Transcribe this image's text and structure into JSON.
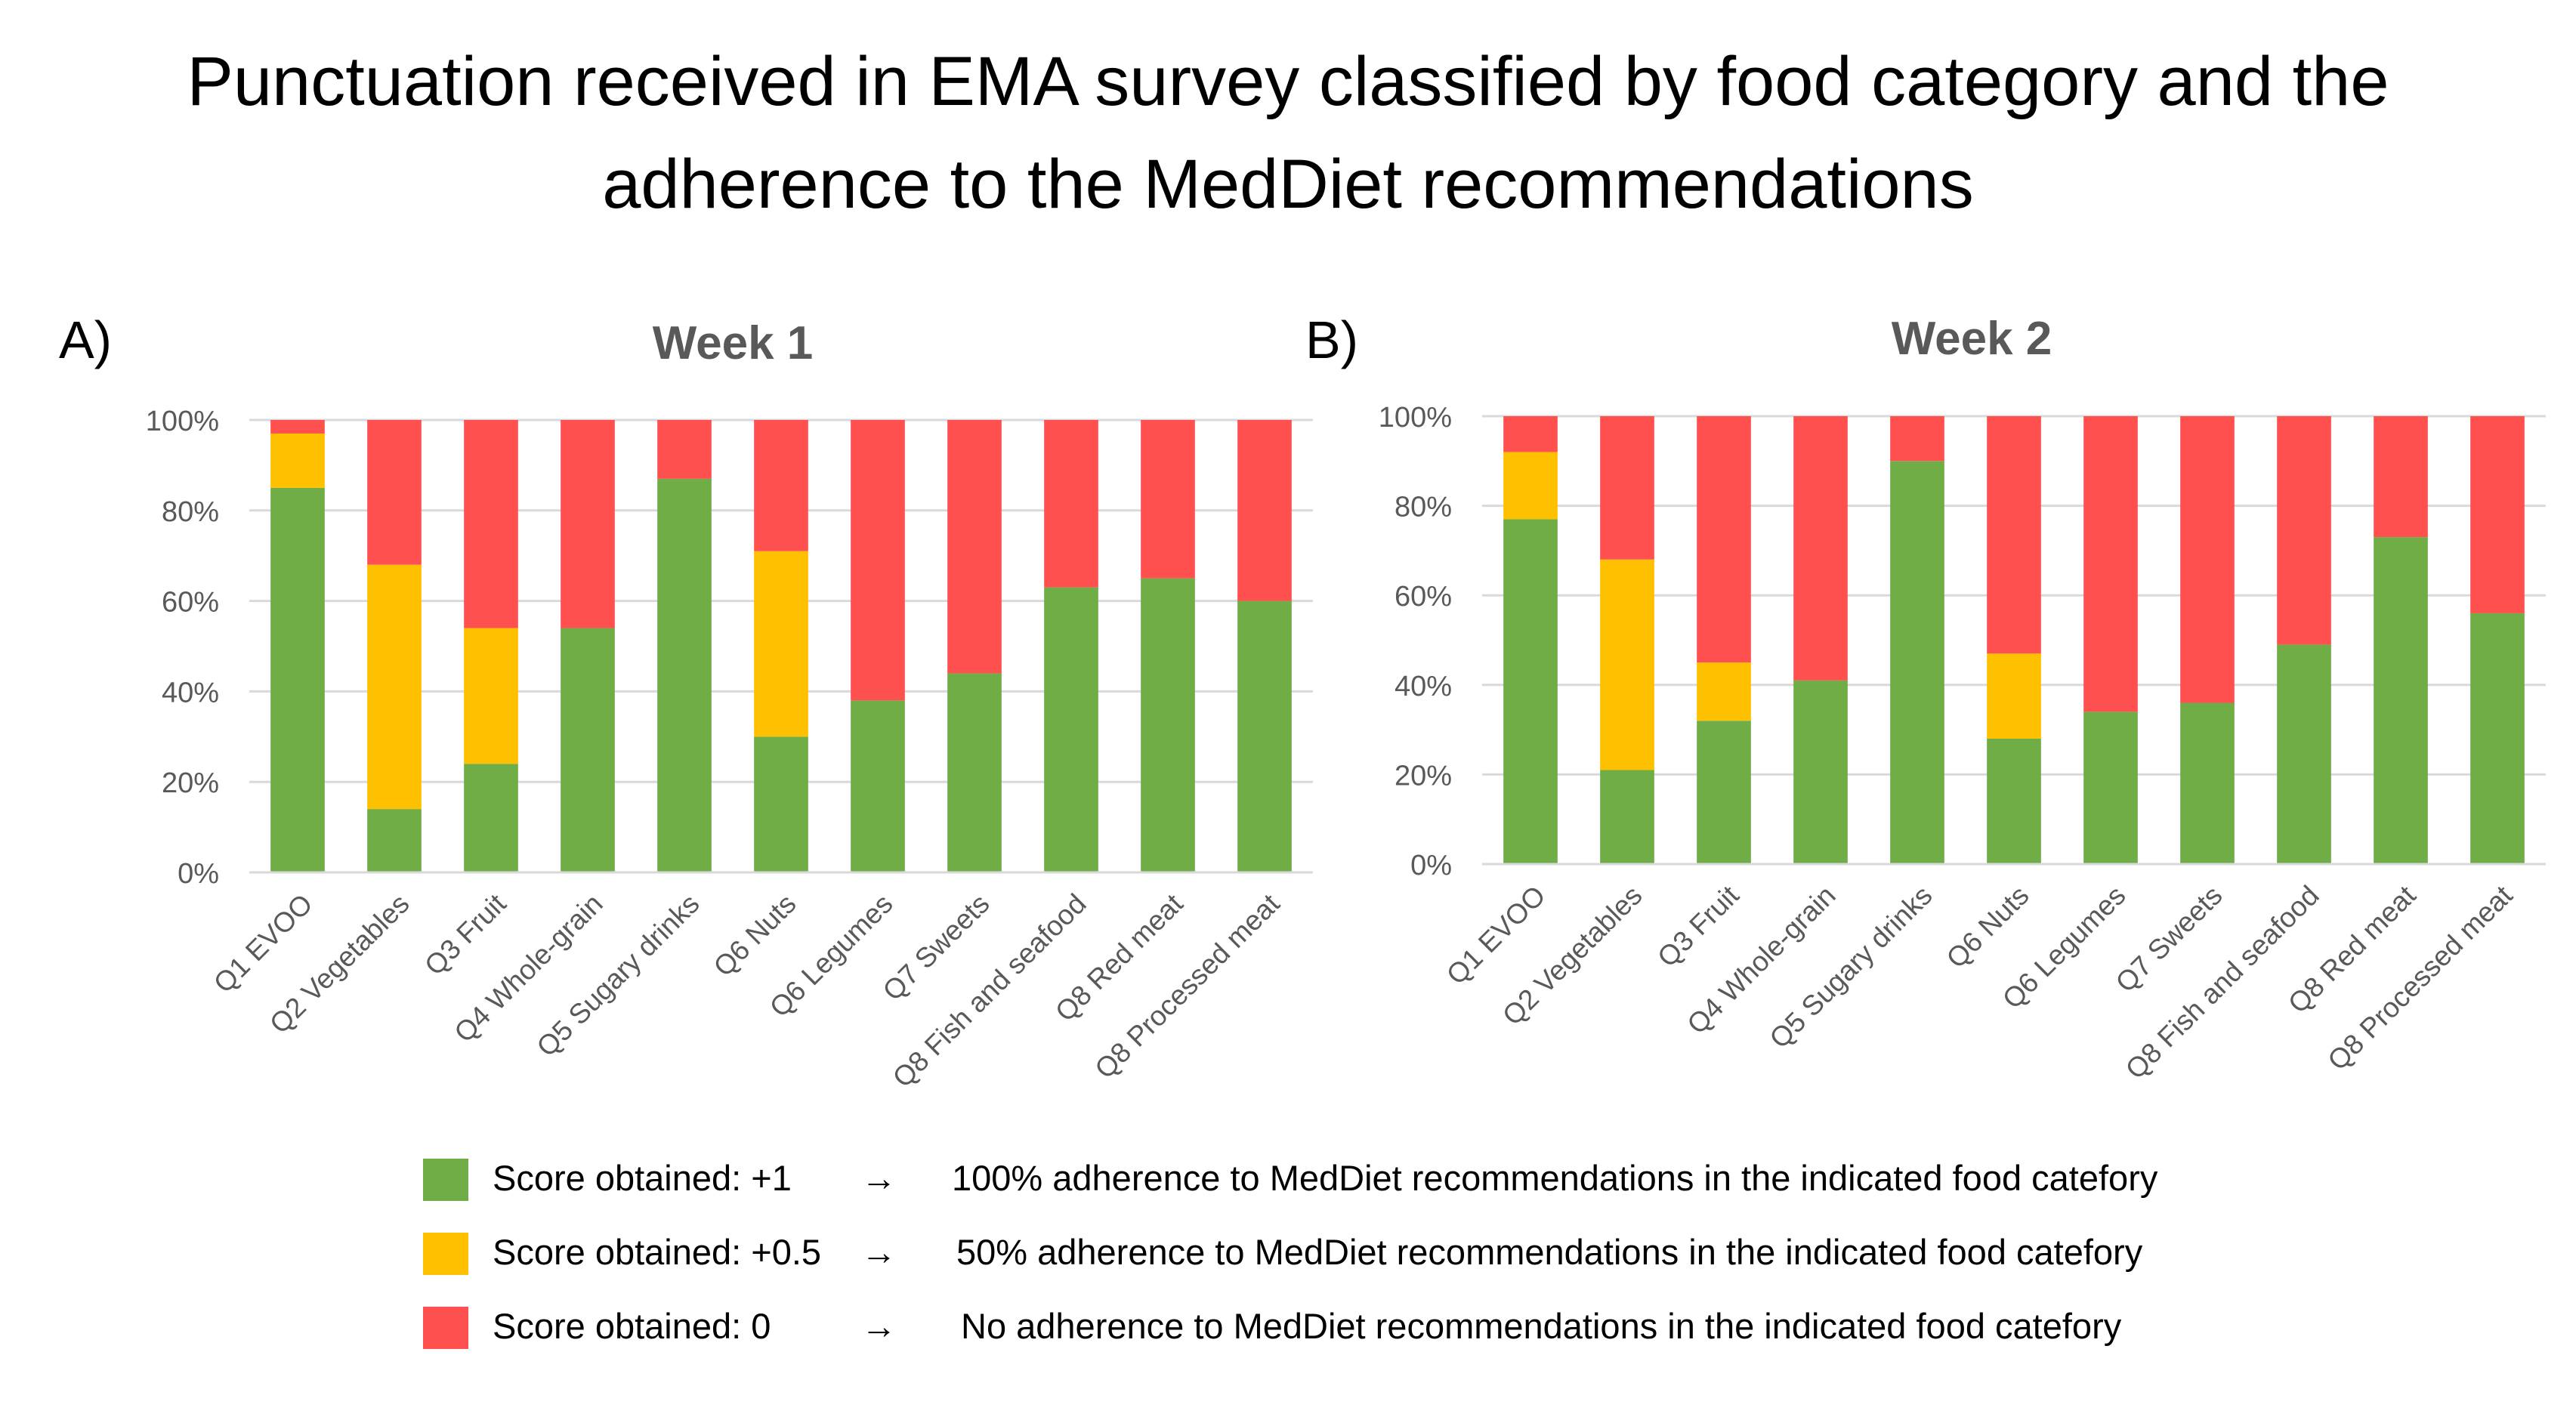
{
  "title_line1": "Punctuation received in EMA survey classified by food category and the",
  "title_line2": "adherence to the MedDiet recommendations",
  "colors": {
    "green": "#70AD47",
    "yellow": "#FFC000",
    "red": "#FF5050",
    "grid": "#d9d9d9",
    "axis_text": "#595959"
  },
  "legend": [
    {
      "label": "Score obtained: +1",
      "arrow": "→",
      "desc": "100% adherence to MedDiet recommendations in the indicated food catefory",
      "color": "#70AD47"
    },
    {
      "label": "Score obtained: +0.5",
      "arrow": "→",
      "desc": "50% adherence to MedDiet recommendations in the indicated food catefory",
      "color": "#FFC000"
    },
    {
      "label": "Score obtained: 0",
      "arrow": "→",
      "desc": "No adherence to MedDiet recommendations in the indicated food catefory",
      "color": "#FF5050"
    }
  ],
  "chart_data": [
    {
      "panel": "A)",
      "type": "bar",
      "stacked": true,
      "title": "Week 1",
      "ylim": [
        0,
        100
      ],
      "yticks": [
        "0%",
        "20%",
        "40%",
        "60%",
        "80%",
        "100%"
      ],
      "categories": [
        "Q1 EVOO",
        "Q2 Vegetables",
        "Q3 Fruit",
        "Q4 Whole-grain",
        "Q5 Sugary drinks",
        "Q6 Nuts",
        "Q6 Legumes",
        "Q7 Sweets",
        "Q8 Fish and seafood",
        "Q8 Red meat",
        "Q8 Processed meat"
      ],
      "series": [
        {
          "name": "Score obtained: +1",
          "values": [
            85,
            14,
            24,
            54,
            87,
            30,
            38,
            44,
            63,
            65,
            60
          ]
        },
        {
          "name": "Score obtained: +0.5",
          "values": [
            12,
            54,
            30,
            0,
            0,
            41,
            0,
            0,
            0,
            0,
            0
          ]
        },
        {
          "name": "Score obtained: 0",
          "values": [
            3,
            32,
            46,
            46,
            13,
            29,
            62,
            56,
            37,
            35,
            40
          ]
        }
      ]
    },
    {
      "panel": "B)",
      "type": "bar",
      "stacked": true,
      "title": "Week 2",
      "ylim": [
        0,
        100
      ],
      "yticks": [
        "0%",
        "20%",
        "40%",
        "60%",
        "80%",
        "100%"
      ],
      "categories": [
        "Q1 EVOO",
        "Q2 Vegetables",
        "Q3 Fruit",
        "Q4 Whole-grain",
        "Q5 Sugary drinks",
        "Q6 Nuts",
        "Q6 Legumes",
        "Q7 Sweets",
        "Q8 Fish and seafood",
        "Q8 Red meat",
        "Q8 Processed meat"
      ],
      "series": [
        {
          "name": "Score obtained: +1",
          "values": [
            77,
            21,
            32,
            41,
            90,
            28,
            34,
            36,
            49,
            73,
            56
          ]
        },
        {
          "name": "Score obtained: +0.5",
          "values": [
            15,
            47,
            13,
            0,
            0,
            19,
            0,
            0,
            0,
            0,
            0
          ]
        },
        {
          "name": "Score obtained: 0",
          "values": [
            8,
            32,
            55,
            59,
            10,
            53,
            66,
            64,
            51,
            27,
            44
          ]
        }
      ]
    }
  ]
}
